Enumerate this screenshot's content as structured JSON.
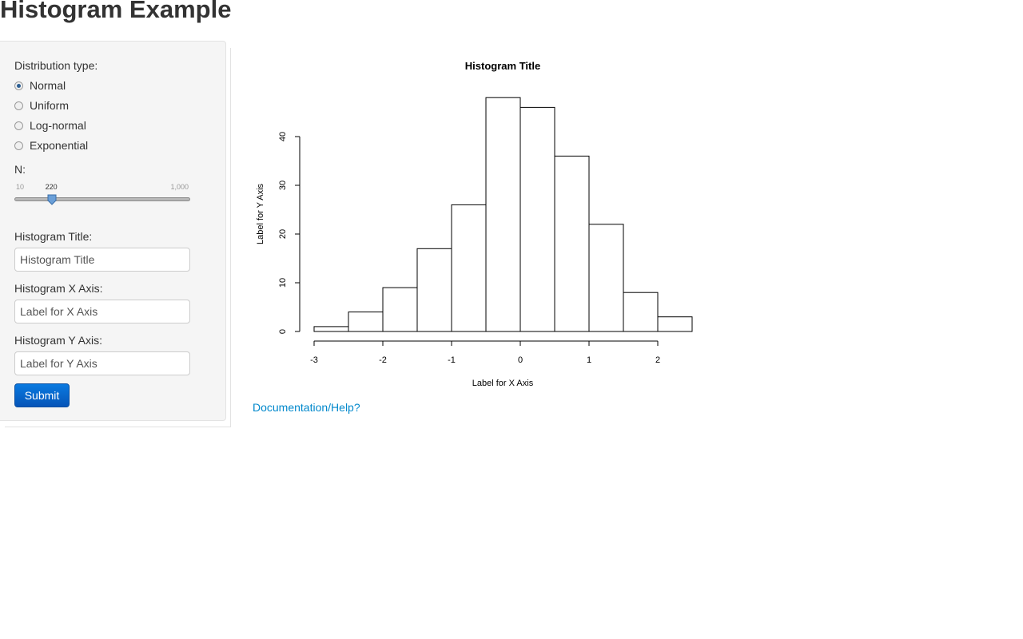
{
  "page": {
    "title": "Histogram Example"
  },
  "sidebar": {
    "distribution_label": "Distribution type:",
    "distribution_options": [
      {
        "label": "Normal",
        "checked": true
      },
      {
        "label": "Uniform",
        "checked": false
      },
      {
        "label": "Log-normal",
        "checked": false
      },
      {
        "label": "Exponential",
        "checked": false
      }
    ],
    "n_label": "N:",
    "slider": {
      "min": 10,
      "max": 1000,
      "value": 220,
      "min_label": "10",
      "max_label": "1,000",
      "value_label": "220"
    },
    "title_label": "Histogram Title:",
    "title_value": "Histogram Title",
    "xaxis_label": "Histogram X Axis:",
    "xaxis_value": "Label for X Axis",
    "yaxis_label": "Histogram Y Axis:",
    "yaxis_value": "Label for Y Axis",
    "submit_label": "Submit"
  },
  "link": {
    "doc_label": "Documentation/Help?"
  },
  "colors": {
    "accent": "#0088cc",
    "button": "#0a6bd1",
    "sidebar_bg": "#f5f5f5"
  },
  "chart_data": {
    "type": "bar",
    "title": "Histogram Title",
    "xlabel": "Label for X Axis",
    "ylabel": "Label for Y Axis",
    "bin_edges": [
      -3,
      -2.5,
      -2,
      -1.5,
      -1,
      -0.5,
      0,
      0.5,
      1,
      1.5,
      2,
      2.5
    ],
    "values": [
      1,
      4,
      9,
      17,
      26,
      48,
      46,
      36,
      22,
      8,
      3
    ],
    "x_ticks": [
      -3,
      -2,
      -1,
      0,
      1,
      2
    ],
    "y_ticks": [
      0,
      10,
      20,
      30,
      40
    ],
    "xlim": [
      -3,
      2.5
    ],
    "ylim": [
      0,
      48
    ],
    "grid": false,
    "legend": "none"
  }
}
